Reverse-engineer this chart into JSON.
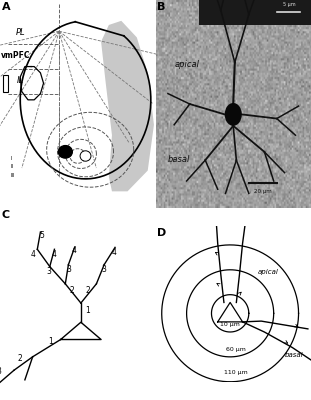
{
  "panel_labels": [
    "A",
    "B",
    "C",
    "D"
  ],
  "panel_label_fontsize": 8,
  "background_color": "#ffffff",
  "line_color": "#000000",
  "text_color": "#000000",
  "gray_shadow": "#c0c0c0",
  "figure_size": [
    3.11,
    4.0
  ],
  "dpi": 100,
  "panel_D": {
    "circle_labels": [
      "10 μm",
      "60 μm",
      "110 μm"
    ],
    "dendrite_labels": [
      "apical",
      "basal"
    ]
  }
}
